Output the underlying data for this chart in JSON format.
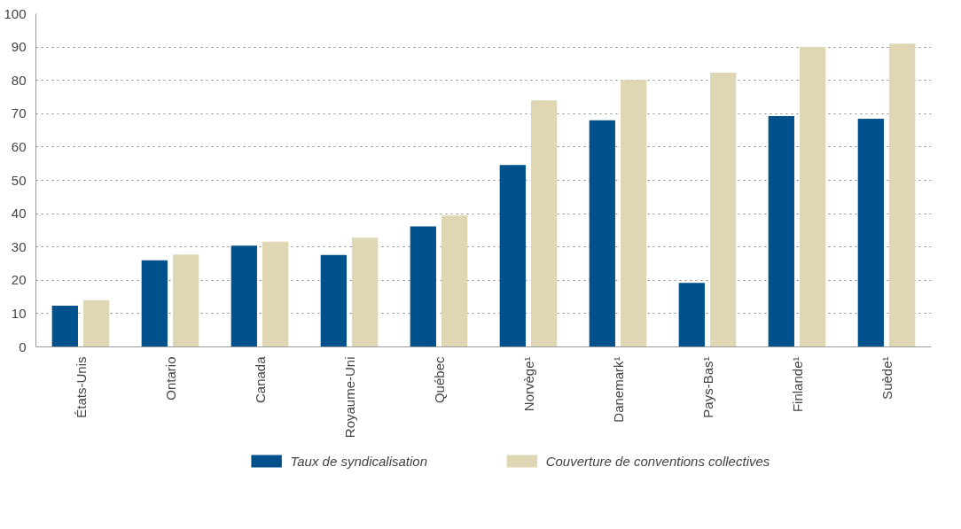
{
  "chart_data": {
    "type": "bar",
    "categories": [
      "États-Unis",
      "Ontario",
      "Canada",
      "Royaume-Uni",
      "Québec",
      "Norvège¹",
      "Danemark¹",
      "Pays-Bas¹",
      "Finlande¹",
      "Suède¹"
    ],
    "series": [
      {
        "name": "Taux de syndicalisation",
        "color": "#00518c",
        "values": [
          12.4,
          26,
          30.4,
          27.6,
          36.2,
          54.6,
          68,
          19.2,
          69.3,
          68.5
        ]
      },
      {
        "name": "Couverture de conventions collectives",
        "color": "#dfd6b4",
        "values": [
          14,
          27.7,
          31.6,
          32.8,
          39.4,
          74,
          80.1,
          82.3,
          90,
          91
        ]
      }
    ],
    "ylim": [
      0,
      100
    ],
    "yticks": [
      0,
      10,
      20,
      30,
      40,
      50,
      60,
      70,
      80,
      90,
      100
    ],
    "grid": "y",
    "legend": "bottom"
  }
}
